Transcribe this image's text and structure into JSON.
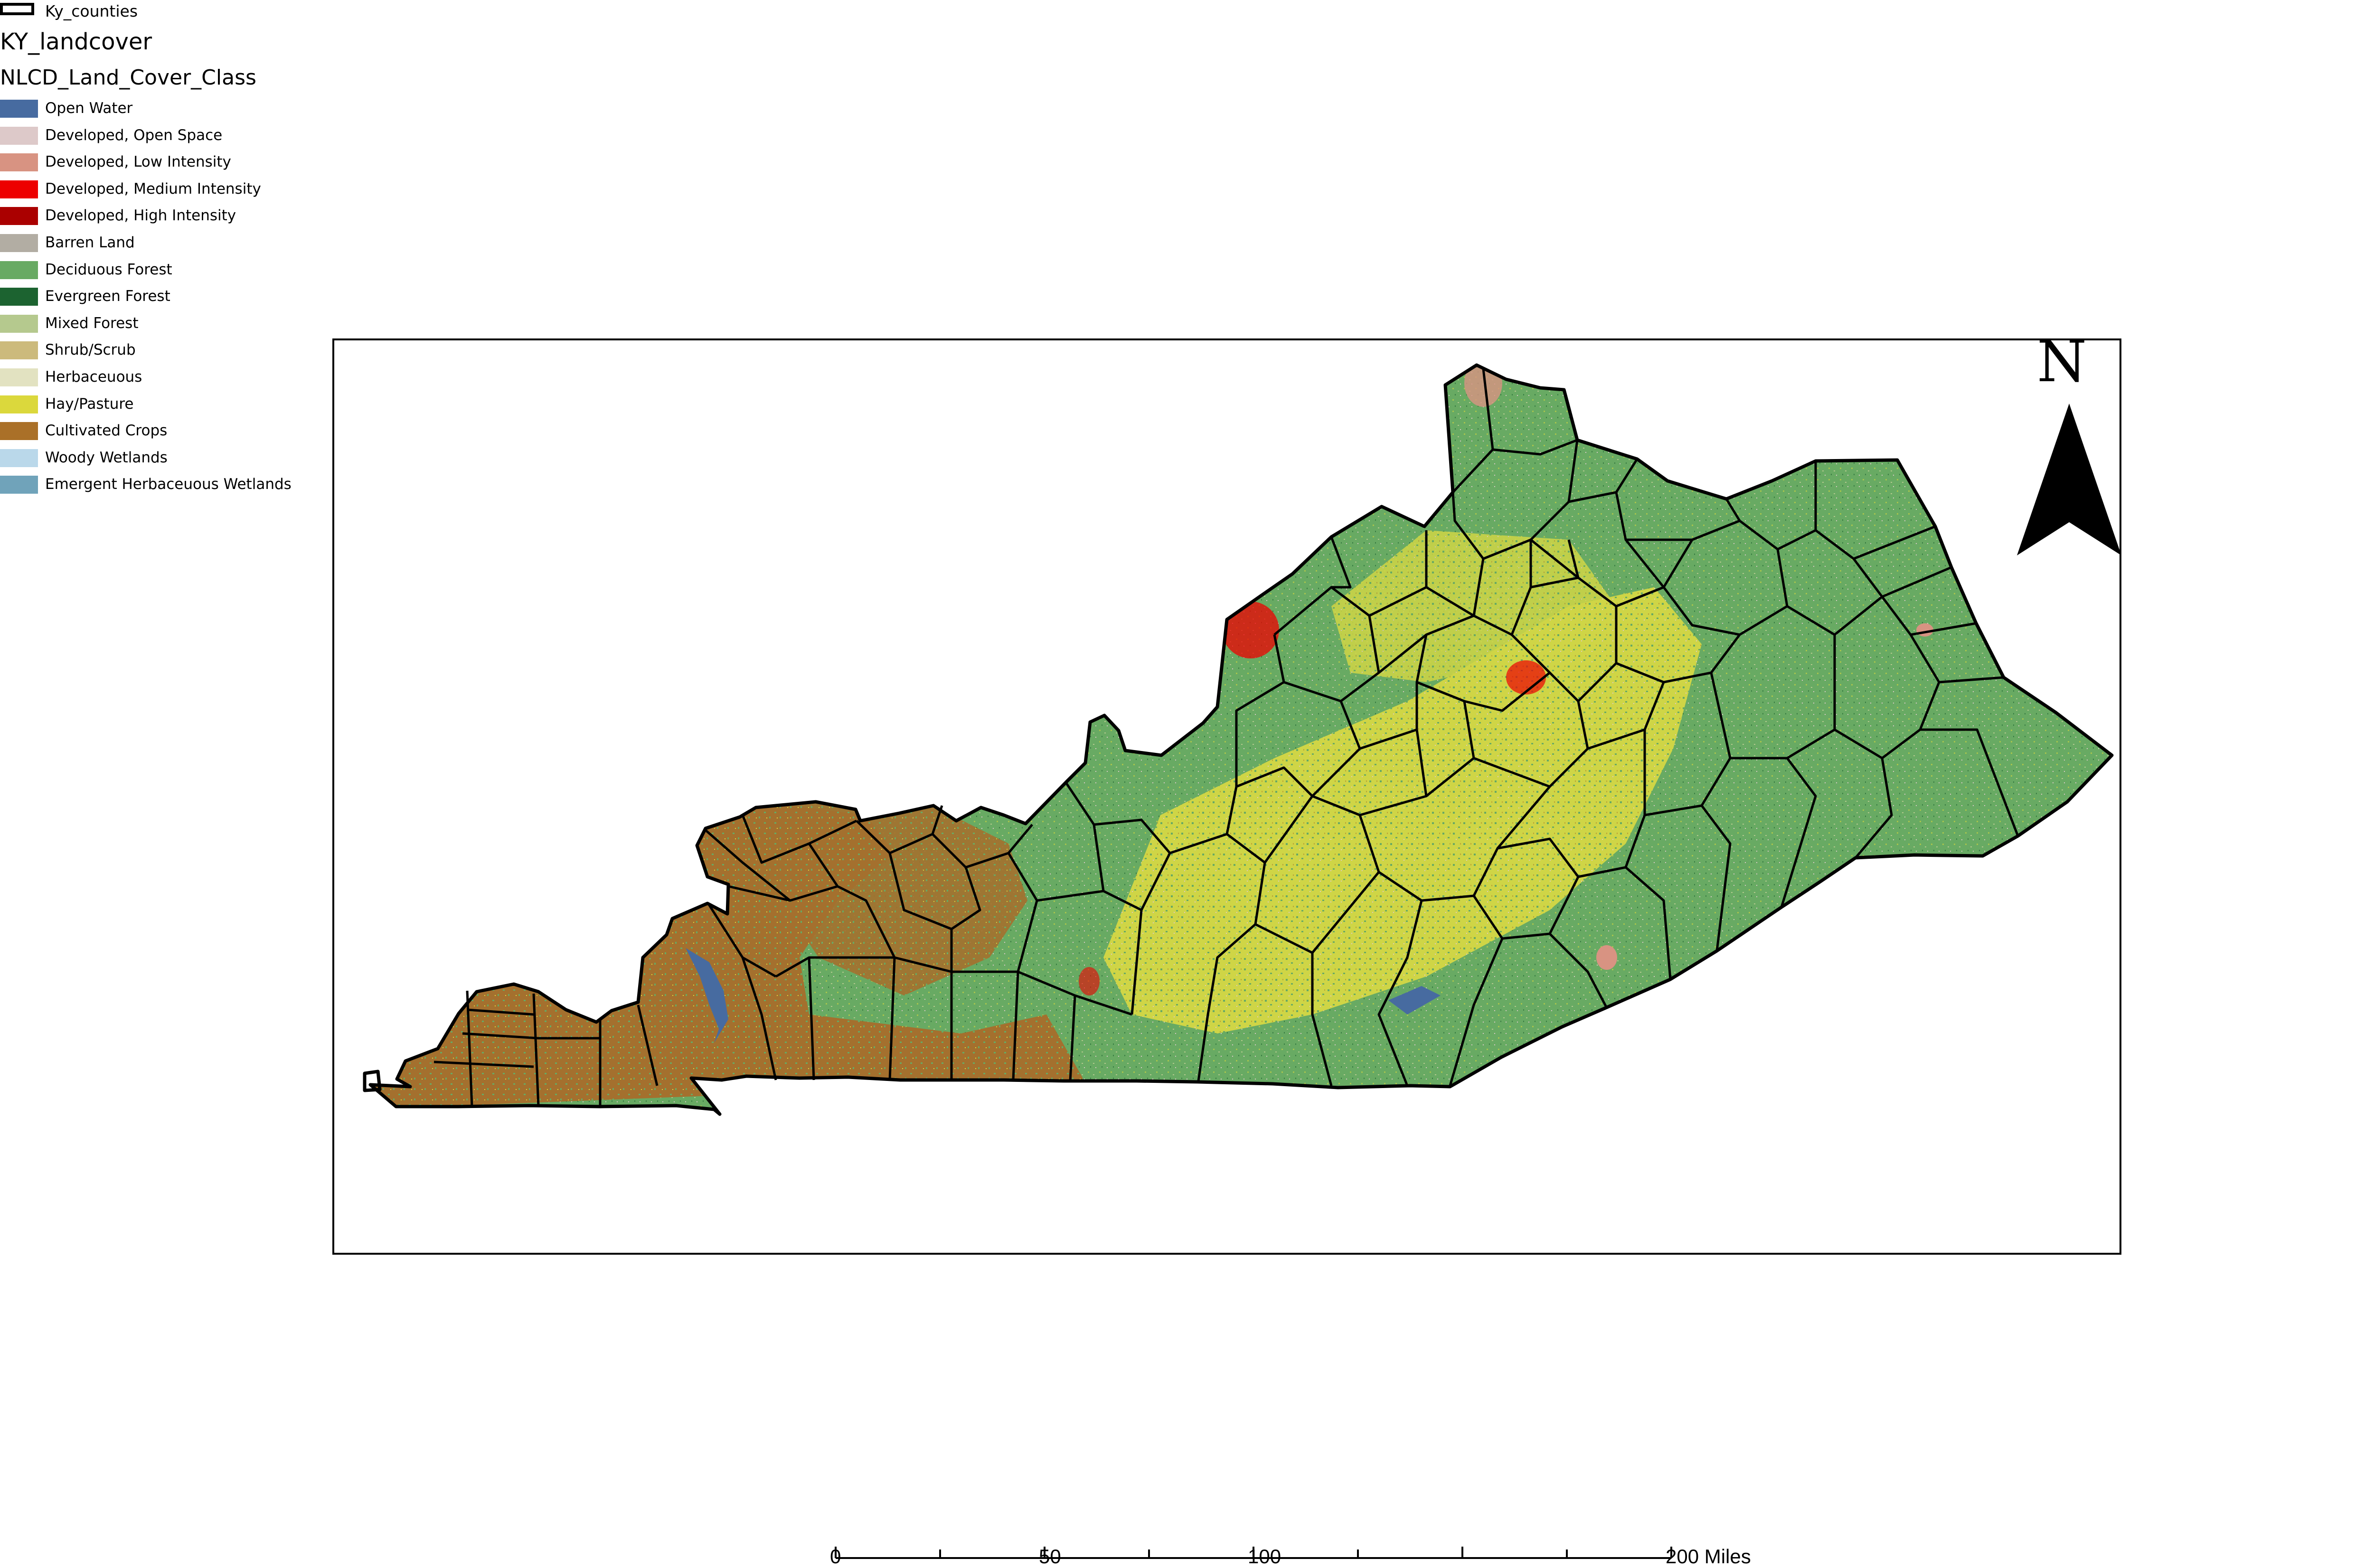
{
  "legend": {
    "layer_name": "Ky_counties",
    "title": "KY_landcover",
    "field": "NLCD_Land_Cover_Class",
    "classes": [
      {
        "label": "Open Water",
        "color": "#476ba0"
      },
      {
        "label": "Developed, Open Space",
        "color": "#ddc9c9"
      },
      {
        "label": "Developed, Low Intensity",
        "color": "#d89382"
      },
      {
        "label": "Developed, Medium Intensity",
        "color": "#ed0000"
      },
      {
        "label": "Developed, High Intensity",
        "color": "#aa0000"
      },
      {
        "label": "Barren Land",
        "color": "#b2ada3"
      },
      {
        "label": "Deciduous Forest",
        "color": "#68aa63"
      },
      {
        "label": "Evergreen Forest",
        "color": "#1c6330"
      },
      {
        "label": "Mixed Forest",
        "color": "#b5c98e"
      },
      {
        "label": "Shrub/Scrub",
        "color": "#ccba7c"
      },
      {
        "label": "Herbaceuous",
        "color": "#e2e2c1"
      },
      {
        "label": "Hay/Pasture",
        "color": "#dbd83c"
      },
      {
        "label": "Cultivated Crops",
        "color": "#aa7028"
      },
      {
        "label": "Woody Wetlands",
        "color": "#bad8ea"
      },
      {
        "label": "Emergent Herbaceuous Wetlands",
        "color": "#70a3ba"
      }
    ]
  },
  "north_arrow": {
    "label": "N"
  },
  "scale_bar": {
    "labels": [
      "0",
      "50",
      "100",
      "200 Miles"
    ],
    "values": [
      0,
      50,
      100,
      200
    ]
  },
  "colors": {
    "county_border": "#000000",
    "frame_border": "#000000"
  }
}
